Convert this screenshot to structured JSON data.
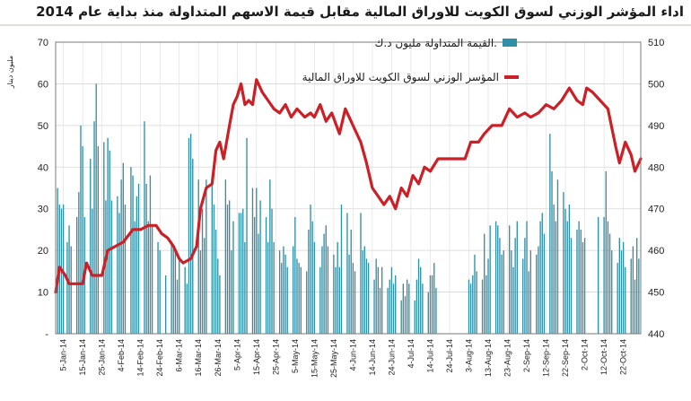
{
  "chart_data": {
    "type": "bar+line",
    "title": "اداء المؤشر الوزني لسوق الكويت للاوراق المالية مقابل قيمة الاسهم المتداولة منذ بداية عام 2014",
    "ylabel_left": "مليون دينار",
    "ylim_left": [
      0,
      70
    ],
    "ylim_right": [
      440,
      510
    ],
    "yticks_left": [
      "-",
      "10",
      "20",
      "30",
      "40",
      "50",
      "60",
      "70"
    ],
    "yticks_right": [
      "440",
      "450",
      "460",
      "470",
      "480",
      "490",
      "500",
      "510"
    ],
    "grid": true,
    "legend_position": "top-right",
    "x_dates": [
      "5-Jan-14",
      "15-Jan-14",
      "25-Jan-14",
      "4-Feb-14",
      "14-Feb-14",
      "24-Feb-14",
      "6-Mar-14",
      "16-Mar-14",
      "26-Mar-14",
      "5-Apr-14",
      "15-Apr-14",
      "25-Apr-14",
      "5-May-14",
      "15-May-14",
      "25-May-14",
      "4-Jun-14",
      "14-Jun-14",
      "24-Jun-14",
      "4-Jul-14",
      "14-Jul-14",
      "24-Jul-14",
      "3-Aug-14",
      "13-Aug-14",
      "23-Aug-14",
      "2-Sep-14",
      "12-Sep-14",
      "22-Sep-14",
      "2-Oct-14",
      "12-Oct-14",
      "22-Oct-14"
    ],
    "x_range": [
      "2014-01-01",
      "2014-10-31"
    ],
    "bar_series": {
      "name": "القيمة المتداولة مليون د.ك.",
      "color": "#2e8fa6",
      "points": [
        [
          "2014-01-02",
          35
        ],
        [
          "2014-01-03",
          31
        ],
        [
          "2014-01-04",
          30
        ],
        [
          "2014-01-05",
          31
        ],
        [
          "2014-01-07",
          22
        ],
        [
          "2014-01-08",
          26
        ],
        [
          "2014-01-09",
          21
        ],
        [
          "2014-01-12",
          28
        ],
        [
          "2014-01-13",
          34
        ],
        [
          "2014-01-14",
          50
        ],
        [
          "2014-01-15",
          45
        ],
        [
          "2014-01-16",
          28
        ],
        [
          "2014-01-19",
          42
        ],
        [
          "2014-01-20",
          30
        ],
        [
          "2014-01-21",
          51
        ],
        [
          "2014-01-22",
          60
        ],
        [
          "2014-01-23",
          45
        ],
        [
          "2014-01-26",
          46
        ],
        [
          "2014-01-27",
          32
        ],
        [
          "2014-01-28",
          47
        ],
        [
          "2014-01-29",
          44
        ],
        [
          "2014-01-30",
          32
        ],
        [
          "2014-02-02",
          33
        ],
        [
          "2014-02-03",
          29
        ],
        [
          "2014-02-04",
          37
        ],
        [
          "2014-02-05",
          41
        ],
        [
          "2014-02-06",
          31
        ],
        [
          "2014-02-09",
          40
        ],
        [
          "2014-02-10",
          38
        ],
        [
          "2014-02-11",
          27
        ],
        [
          "2014-02-12",
          33
        ],
        [
          "2014-02-13",
          36
        ],
        [
          "2014-02-16",
          51
        ],
        [
          "2014-02-17",
          36
        ],
        [
          "2014-02-18",
          27
        ],
        [
          "2014-02-19",
          38
        ],
        [
          "2014-02-20",
          26
        ],
        [
          "2014-02-23",
          22
        ],
        [
          "2014-02-24",
          20
        ],
        [
          "2014-02-27",
          14
        ],
        [
          "2014-03-02",
          22
        ],
        [
          "2014-03-03",
          21
        ],
        [
          "2014-03-04",
          20
        ],
        [
          "2014-03-05",
          13
        ],
        [
          "2014-03-06",
          18
        ],
        [
          "2014-03-09",
          16
        ],
        [
          "2014-03-10",
          12
        ],
        [
          "2014-03-11",
          47
        ],
        [
          "2014-03-12",
          48
        ],
        [
          "2014-03-13",
          42
        ],
        [
          "2014-03-16",
          37
        ],
        [
          "2014-03-17",
          20
        ],
        [
          "2014-03-18",
          30
        ],
        [
          "2014-03-19",
          23
        ],
        [
          "2014-03-20",
          37
        ],
        [
          "2014-03-23",
          38
        ],
        [
          "2014-03-24",
          31
        ],
        [
          "2014-03-25",
          25
        ],
        [
          "2014-03-26",
          18
        ],
        [
          "2014-03-27",
          14
        ],
        [
          "2014-03-30",
          37
        ],
        [
          "2014-03-31",
          31
        ],
        [
          "2014-04-01",
          32
        ],
        [
          "2014-04-02",
          20
        ],
        [
          "2014-04-03",
          27
        ],
        [
          "2014-04-06",
          29
        ],
        [
          "2014-04-07",
          29
        ],
        [
          "2014-04-08",
          30
        ],
        [
          "2014-04-09",
          22
        ],
        [
          "2014-04-10",
          47
        ],
        [
          "2014-04-13",
          35
        ],
        [
          "2014-04-14",
          28
        ],
        [
          "2014-04-15",
          35
        ],
        [
          "2014-04-16",
          24
        ],
        [
          "2014-04-17",
          32
        ],
        [
          "2014-04-20",
          28
        ],
        [
          "2014-04-21",
          22
        ],
        [
          "2014-04-22",
          37
        ],
        [
          "2014-04-23",
          30
        ],
        [
          "2014-04-24",
          22
        ],
        [
          "2014-04-27",
          20
        ],
        [
          "2014-04-28",
          17
        ],
        [
          "2014-04-29",
          21
        ],
        [
          "2014-04-30",
          19
        ],
        [
          "2014-05-01",
          16
        ],
        [
          "2014-05-04",
          21
        ],
        [
          "2014-05-05",
          28
        ],
        [
          "2014-05-06",
          18
        ],
        [
          "2014-05-07",
          17
        ],
        [
          "2014-05-08",
          16
        ],
        [
          "2014-05-11",
          15
        ],
        [
          "2014-05-12",
          25
        ],
        [
          "2014-05-13",
          31
        ],
        [
          "2014-05-14",
          27
        ],
        [
          "2014-05-15",
          22
        ],
        [
          "2014-05-18",
          16
        ],
        [
          "2014-05-19",
          21
        ],
        [
          "2014-05-20",
          24
        ],
        [
          "2014-05-21",
          26
        ],
        [
          "2014-05-22",
          21
        ],
        [
          "2014-05-25",
          19
        ],
        [
          "2014-05-26",
          16
        ],
        [
          "2014-05-27",
          22
        ],
        [
          "2014-05-28",
          16
        ],
        [
          "2014-05-29",
          31
        ],
        [
          "2014-06-01",
          29
        ],
        [
          "2014-06-02",
          19
        ],
        [
          "2014-06-03",
          25
        ],
        [
          "2014-06-04",
          17
        ],
        [
          "2014-06-05",
          15
        ],
        [
          "2014-06-08",
          29
        ],
        [
          "2014-06-09",
          20
        ],
        [
          "2014-06-10",
          21
        ],
        [
          "2014-06-11",
          18
        ],
        [
          "2014-06-12",
          17
        ],
        [
          "2014-06-15",
          13
        ],
        [
          "2014-06-16",
          18
        ],
        [
          "2014-06-17",
          16
        ],
        [
          "2014-06-18",
          11
        ],
        [
          "2014-06-19",
          16
        ],
        [
          "2014-06-22",
          11
        ],
        [
          "2014-06-23",
          13
        ],
        [
          "2014-06-24",
          16
        ],
        [
          "2014-06-25",
          12
        ],
        [
          "2014-06-26",
          14
        ],
        [
          "2014-06-29",
          8
        ],
        [
          "2014-06-30",
          12
        ],
        [
          "2014-07-01",
          9
        ],
        [
          "2014-07-02",
          13
        ],
        [
          "2014-07-03",
          12
        ],
        [
          "2014-07-06",
          8
        ],
        [
          "2014-07-07",
          13
        ],
        [
          "2014-07-08",
          18
        ],
        [
          "2014-07-09",
          16
        ],
        [
          "2014-07-10",
          12
        ],
        [
          "2014-07-13",
          10
        ],
        [
          "2014-07-14",
          14
        ],
        [
          "2014-07-15",
          14
        ],
        [
          "2014-07-16",
          17
        ],
        [
          "2014-07-17",
          11
        ],
        [
          "2014-08-03",
          13
        ],
        [
          "2014-08-04",
          12
        ],
        [
          "2014-08-05",
          14
        ],
        [
          "2014-08-06",
          19
        ],
        [
          "2014-08-07",
          15
        ],
        [
          "2014-08-10",
          13
        ],
        [
          "2014-08-11",
          24
        ],
        [
          "2014-08-12",
          14
        ],
        [
          "2014-08-13",
          18
        ],
        [
          "2014-08-14",
          26
        ],
        [
          "2014-08-17",
          27
        ],
        [
          "2014-08-18",
          26
        ],
        [
          "2014-08-19",
          23
        ],
        [
          "2014-08-20",
          19
        ],
        [
          "2014-08-21",
          20
        ],
        [
          "2014-08-24",
          26
        ],
        [
          "2014-08-25",
          20
        ],
        [
          "2014-08-26",
          16
        ],
        [
          "2014-08-27",
          23
        ],
        [
          "2014-08-28",
          27
        ],
        [
          "2014-08-31",
          18
        ],
        [
          "2014-09-01",
          23
        ],
        [
          "2014-09-02",
          27
        ],
        [
          "2014-09-03",
          15
        ],
        [
          "2014-09-04",
          20
        ],
        [
          "2014-09-07",
          19
        ],
        [
          "2014-09-08",
          21
        ],
        [
          "2014-09-09",
          27
        ],
        [
          "2014-09-10",
          29
        ],
        [
          "2014-09-11",
          24
        ],
        [
          "2014-09-14",
          48
        ],
        [
          "2014-09-15",
          39
        ],
        [
          "2014-09-16",
          31
        ],
        [
          "2014-09-17",
          27
        ],
        [
          "2014-09-18",
          37
        ],
        [
          "2014-09-21",
          34
        ],
        [
          "2014-09-22",
          30
        ],
        [
          "2014-09-23",
          27
        ],
        [
          "2014-09-24",
          31
        ],
        [
          "2014-09-25",
          23
        ],
        [
          "2014-09-28",
          25
        ],
        [
          "2014-09-29",
          27
        ],
        [
          "2014-09-30",
          25
        ],
        [
          "2014-10-01",
          22
        ],
        [
          "2014-10-02",
          23
        ],
        [
          "2014-10-09",
          28
        ],
        [
          "2014-10-12",
          28
        ],
        [
          "2014-10-13",
          39
        ],
        [
          "2014-10-14",
          27
        ],
        [
          "2014-10-15",
          24
        ],
        [
          "2014-10-16",
          20
        ],
        [
          "2014-10-19",
          17
        ],
        [
          "2014-10-20",
          23
        ],
        [
          "2014-10-21",
          20
        ],
        [
          "2014-10-22",
          22
        ],
        [
          "2014-10-23",
          16
        ],
        [
          "2014-10-26",
          18
        ],
        [
          "2014-10-27",
          21
        ],
        [
          "2014-10-28",
          13
        ],
        [
          "2014-10-29",
          23
        ],
        [
          "2014-10-30",
          18
        ]
      ]
    },
    "line_series": {
      "name": "المؤسر الوزني لسوق الكويت للاوراق المالية",
      "color": "#cc1f26",
      "points": [
        [
          "2014-01-01",
          450
        ],
        [
          "2014-01-03",
          456
        ],
        [
          "2014-01-06",
          454
        ],
        [
          "2014-01-08",
          452
        ],
        [
          "2014-01-12",
          452
        ],
        [
          "2014-01-15",
          452
        ],
        [
          "2014-01-17",
          457
        ],
        [
          "2014-01-20",
          454
        ],
        [
          "2014-01-25",
          454
        ],
        [
          "2014-01-28",
          460
        ],
        [
          "2014-02-01",
          461
        ],
        [
          "2014-02-05",
          462
        ],
        [
          "2014-02-10",
          465
        ],
        [
          "2014-02-14",
          465
        ],
        [
          "2014-02-18",
          466
        ],
        [
          "2014-02-22",
          466
        ],
        [
          "2014-02-25",
          464
        ],
        [
          "2014-02-28",
          463
        ],
        [
          "2014-03-03",
          461
        ],
        [
          "2014-03-06",
          458
        ],
        [
          "2014-03-08",
          457
        ],
        [
          "2014-03-12",
          458
        ],
        [
          "2014-03-15",
          461
        ],
        [
          "2014-03-17",
          470
        ],
        [
          "2014-03-20",
          475
        ],
        [
          "2014-03-23",
          476
        ],
        [
          "2014-03-25",
          484
        ],
        [
          "2014-03-27",
          486
        ],
        [
          "2014-03-29",
          482
        ],
        [
          "2014-04-01",
          490
        ],
        [
          "2014-04-03",
          495
        ],
        [
          "2014-04-05",
          497
        ],
        [
          "2014-04-07",
          500
        ],
        [
          "2014-04-09",
          495
        ],
        [
          "2014-04-11",
          496
        ],
        [
          "2014-04-13",
          495
        ],
        [
          "2014-04-15",
          501
        ],
        [
          "2014-04-18",
          498
        ],
        [
          "2014-04-21",
          496
        ],
        [
          "2014-04-24",
          494
        ],
        [
          "2014-04-27",
          493
        ],
        [
          "2014-04-30",
          495
        ],
        [
          "2014-05-03",
          492
        ],
        [
          "2014-05-06",
          494
        ],
        [
          "2014-05-10",
          492
        ],
        [
          "2014-05-13",
          493
        ],
        [
          "2014-05-15",
          492
        ],
        [
          "2014-05-18",
          495
        ],
        [
          "2014-05-21",
          491
        ],
        [
          "2014-05-24",
          493
        ],
        [
          "2014-05-28",
          488
        ],
        [
          "2014-05-31",
          494
        ],
        [
          "2014-06-02",
          492
        ],
        [
          "2014-06-05",
          489
        ],
        [
          "2014-06-08",
          486
        ],
        [
          "2014-06-11",
          481
        ],
        [
          "2014-06-14",
          475
        ],
        [
          "2014-06-17",
          473
        ],
        [
          "2014-06-20",
          471
        ],
        [
          "2014-06-23",
          473
        ],
        [
          "2014-06-26",
          470
        ],
        [
          "2014-06-29",
          475
        ],
        [
          "2014-07-02",
          473
        ],
        [
          "2014-07-05",
          478
        ],
        [
          "2014-07-08",
          476
        ],
        [
          "2014-07-11",
          480
        ],
        [
          "2014-07-14",
          479
        ],
        [
          "2014-07-18",
          482
        ],
        [
          "2014-07-25",
          482
        ],
        [
          "2014-08-01",
          482
        ],
        [
          "2014-08-04",
          486
        ],
        [
          "2014-08-08",
          486
        ],
        [
          "2014-08-11",
          488
        ],
        [
          "2014-08-15",
          490
        ],
        [
          "2014-08-20",
          490
        ],
        [
          "2014-08-24",
          494
        ],
        [
          "2014-08-28",
          492
        ],
        [
          "2014-09-01",
          493
        ],
        [
          "2014-09-04",
          492
        ],
        [
          "2014-09-08",
          493
        ],
        [
          "2014-09-12",
          495
        ],
        [
          "2014-09-16",
          494
        ],
        [
          "2014-09-20",
          496
        ],
        [
          "2014-09-24",
          499
        ],
        [
          "2014-09-28",
          496
        ],
        [
          "2014-10-01",
          495
        ],
        [
          "2014-10-03",
          499
        ],
        [
          "2014-10-06",
          498
        ],
        [
          "2014-10-10",
          496
        ],
        [
          "2014-10-14",
          494
        ],
        [
          "2014-10-18",
          485
        ],
        [
          "2014-10-20",
          481
        ],
        [
          "2014-10-23",
          486
        ],
        [
          "2014-10-26",
          483
        ],
        [
          "2014-10-28",
          479
        ],
        [
          "2014-10-31",
          482
        ]
      ]
    }
  }
}
